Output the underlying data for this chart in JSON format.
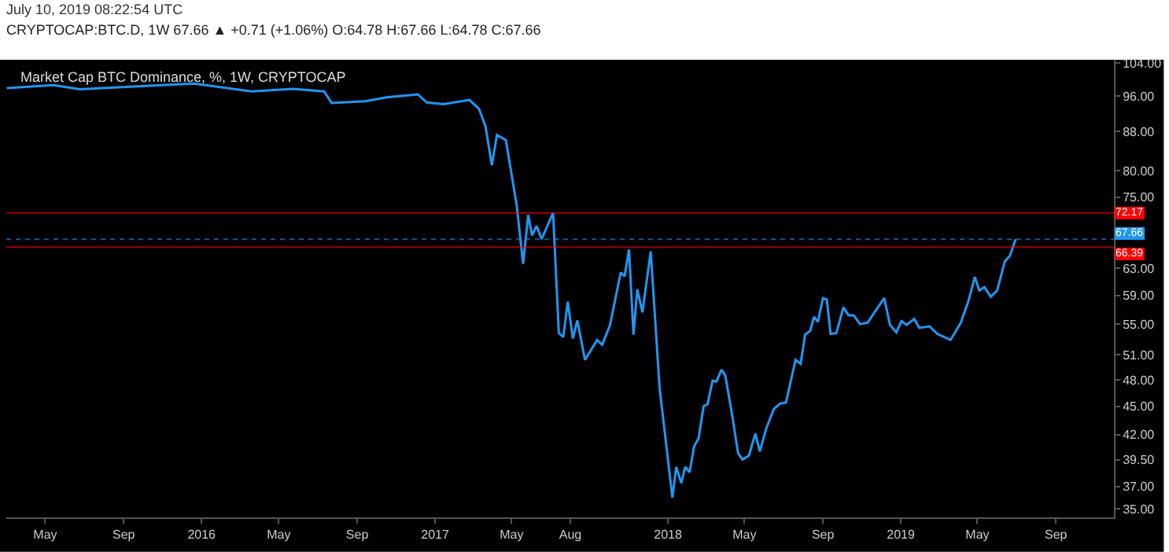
{
  "chart_data": {
    "type": "line",
    "title": "Market Cap BTC Dominance, %, 1W, CRYPTOCAP",
    "subtitle": "CRYPTOCAP:BTC.D, 1W 67.66 ▲ +0.71 (+1.06%) O:64.78 H:67.66 L:64.78 C:67.66",
    "annotations": [
      "July 10, 2019 08:22:54 UTC"
    ],
    "x": [
      "2015-03-02",
      "2015-05-14",
      "2015-06-24",
      "2015-12-20",
      "2016-03-19",
      "2016-05-23",
      "2016-07-11",
      "2016-07-23",
      "2016-09-14",
      "2016-10-17",
      "2016-12-05",
      "2016-12-19",
      "2017-01-14",
      "2017-02-24",
      "2017-03-11",
      "2017-03-21",
      "2017-03-31",
      "2017-04-08",
      "2017-04-22",
      "2017-05-09",
      "2017-05-19",
      "2017-05-27",
      "2017-06-02",
      "2017-06-09",
      "2017-06-17",
      "2017-07-05",
      "2017-07-14",
      "2017-07-21",
      "2017-07-28",
      "2017-08-05",
      "2017-08-12",
      "2017-08-24",
      "2017-09-12",
      "2017-09-20",
      "2017-10-02",
      "2017-10-19",
      "2017-10-25",
      "2017-11-01",
      "2017-11-08",
      "2017-11-14",
      "2017-11-22",
      "2017-12-05",
      "2017-12-19",
      "2018-01-08",
      "2018-01-14",
      "2018-01-22",
      "2018-01-28",
      "2018-02-04",
      "2018-02-11",
      "2018-02-18",
      "2018-02-26",
      "2018-03-04",
      "2018-03-12",
      "2018-03-18",
      "2018-03-26",
      "2018-04-01",
      "2018-04-12",
      "2018-04-21",
      "2018-04-28",
      "2018-05-08",
      "2018-05-18",
      "2018-05-25",
      "2018-06-04",
      "2018-06-16",
      "2018-06-26",
      "2018-07-05",
      "2018-07-20",
      "2018-07-28",
      "2018-08-04",
      "2018-08-12",
      "2018-08-18",
      "2018-08-24",
      "2018-09-01",
      "2018-09-07",
      "2018-09-13",
      "2018-09-22",
      "2018-10-03",
      "2018-10-11",
      "2018-10-19",
      "2018-10-29",
      "2018-11-10",
      "2018-11-26",
      "2018-12-06",
      "2018-12-15",
      "2018-12-25",
      "2019-01-02",
      "2019-01-10",
      "2019-01-22",
      "2019-01-30",
      "2019-02-15",
      "2019-02-27",
      "2019-03-20",
      "2019-04-05",
      "2019-04-17",
      "2019-04-27",
      "2019-05-04",
      "2019-05-12",
      "2019-05-22",
      "2019-06-01",
      "2019-06-13",
      "2019-06-21",
      "2019-06-30"
    ],
    "series": [
      {
        "color": "#2196f3",
        "values": [
          97.9,
          98.6,
          97.6,
          99.0,
          97.1,
          97.7,
          97.1,
          94.4,
          94.8,
          95.7,
          96.4,
          94.5,
          94.1,
          95.1,
          93.0,
          89.2,
          81.1,
          87.3,
          86.2,
          73.5,
          63.7,
          71.8,
          68.3,
          69.9,
          67.7,
          72.2,
          53.8,
          53.3,
          58.1,
          53.1,
          55.5,
          50.4,
          52.9,
          52.3,
          54.8,
          62.4,
          61.8,
          66.0,
          53.6,
          59.9,
          56.6,
          65.7,
          47.0,
          36.0,
          38.8,
          37.3,
          38.8,
          38.3,
          40.8,
          41.6,
          45.0,
          45.2,
          47.9,
          47.8,
          49.2,
          48.5,
          43.9,
          40.1,
          39.5,
          39.9,
          42.1,
          40.3,
          42.6,
          44.7,
          45.3,
          45.4,
          50.4,
          49.9,
          53.6,
          54.1,
          56.0,
          55.3,
          58.6,
          58.4,
          53.7,
          53.8,
          57.3,
          56.2,
          56.2,
          55.0,
          55.2,
          57.3,
          58.6,
          54.9,
          53.9,
          55.4,
          54.9,
          55.7,
          54.5,
          54.7,
          53.7,
          52.9,
          55.2,
          58.2,
          61.7,
          59.7,
          60.2,
          58.8,
          59.7,
          64.1,
          65.0,
          67.66
        ]
      }
    ],
    "xlim": [
      "2015-03-01",
      "2019-12-01"
    ],
    "xticks": [
      {
        "value": "2015-05-01",
        "label": "May"
      },
      {
        "value": "2015-09-01",
        "label": "Sep"
      },
      {
        "value": "2016-01-01",
        "label": "2016"
      },
      {
        "value": "2016-05-01",
        "label": "May"
      },
      {
        "value": "2016-09-01",
        "label": "Sep"
      },
      {
        "value": "2017-01-01",
        "label": "2017"
      },
      {
        "value": "2017-05-01",
        "label": "May"
      },
      {
        "value": "2017-08-01",
        "label": "Aug"
      },
      {
        "value": "2018-01-01",
        "label": "2018"
      },
      {
        "value": "2018-05-01",
        "label": "May"
      },
      {
        "value": "2018-09-01",
        "label": "Sep"
      },
      {
        "value": "2019-01-01",
        "label": "2019"
      },
      {
        "value": "2019-05-01",
        "label": "May"
      },
      {
        "value": "2019-09-01",
        "label": "Sep"
      }
    ],
    "ylim": [
      34.3,
      104.9
    ],
    "log": true,
    "yticks": [
      {
        "value": 104,
        "label": "104.00"
      },
      {
        "value": 96,
        "label": "96.00"
      },
      {
        "value": 88,
        "label": "88.00"
      },
      {
        "value": 80,
        "label": "80.00"
      },
      {
        "value": 75,
        "label": "75.00"
      },
      {
        "value": 63,
        "label": "63.00"
      },
      {
        "value": 59,
        "label": "59.00"
      },
      {
        "value": 55,
        "label": "55.00"
      },
      {
        "value": 51,
        "label": "51.00"
      },
      {
        "value": 48,
        "label": "48.00"
      },
      {
        "value": 45,
        "label": "45.00"
      },
      {
        "value": 42,
        "label": "42.00"
      },
      {
        "value": 39.5,
        "label": "39.50"
      },
      {
        "value": 37,
        "label": "37.00"
      },
      {
        "value": 35,
        "label": "35.00"
      }
    ],
    "ref_lines": [
      {
        "axis": "y",
        "value": 72.17,
        "label": "72.17",
        "color": "#ff0000"
      },
      {
        "axis": "y",
        "value": 67.66,
        "label": "67.66",
        "color": "#2196f3",
        "line_style": "dotted"
      },
      {
        "axis": "y",
        "value": 66.39,
        "label": "66.39",
        "color": "#ff0000"
      }
    ],
    "grid": false,
    "marker": "none",
    "line_style": "solid"
  }
}
